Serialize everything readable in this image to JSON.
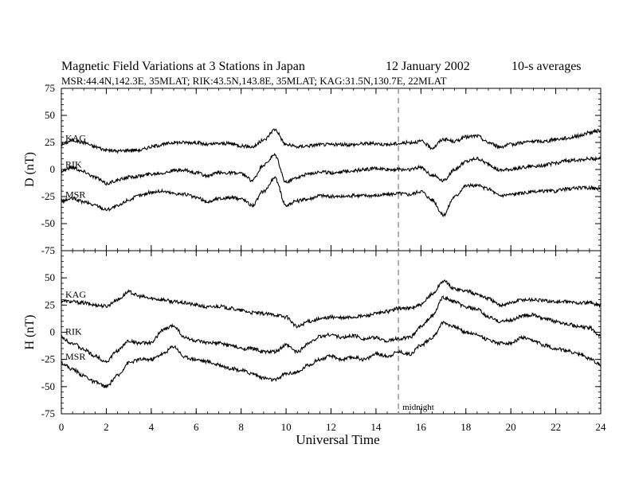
{
  "chart_data": {
    "type": "line",
    "title": {
      "left": "Magnetic Field Variations at 3 Stations in Japan",
      "date": "12 January 2002",
      "averaging": "10-s averages"
    },
    "subtitle": "MSR:44.4N,142.3E, 35MLAT;  RIK:43.5N,143.8E, 35MLAT;  KAG:31.5N,130.7E, 22MLAT",
    "xlabel": "Universal Time",
    "xlim": [
      0,
      24
    ],
    "xticks": [
      0,
      2,
      4,
      6,
      8,
      10,
      12,
      14,
      16,
      18,
      20,
      22,
      24
    ],
    "annotation": {
      "text": "midnight",
      "x": 15
    },
    "panels": [
      {
        "ylabel": "D (nT)",
        "ylim": [
          -75,
          75
        ],
        "yticks": [
          75,
          50,
          25,
          0,
          -25,
          -50,
          -75
        ],
        "x": [
          0,
          0.5,
          1,
          1.5,
          2,
          2.5,
          3,
          3.5,
          4,
          4.5,
          5,
          5.5,
          6,
          6.5,
          7,
          7.5,
          8,
          8.5,
          9,
          9.5,
          10,
          10.5,
          11,
          11.5,
          12,
          12.5,
          13,
          13.5,
          14,
          14.5,
          15,
          15.5,
          16,
          16.5,
          17,
          17.5,
          18,
          18.5,
          19,
          19.5,
          20,
          20.5,
          21,
          21.5,
          22,
          22.5,
          23,
          23.5,
          24
        ],
        "series": [
          {
            "name": "KAG",
            "values": [
              23,
              27,
              25,
              21,
              18,
              17,
              18,
              18,
              21,
              23,
              25,
              25,
              25,
              23,
              24,
              24,
              22,
              21,
              27,
              37,
              23,
              21,
              22,
              23,
              23,
              23,
              23,
              24,
              24,
              23,
              24,
              25,
              26,
              20,
              28,
              26,
              30,
              31,
              25,
              21,
              23,
              25,
              26,
              26,
              28,
              29,
              31,
              34,
              36
            ]
          },
          {
            "name": "RIK",
            "values": [
              -1,
              2,
              -2,
              -7,
              -13,
              -10,
              -7,
              -6,
              -4,
              -3,
              -1,
              -1,
              -3,
              -6,
              -3,
              -3,
              -4,
              -10,
              4,
              13,
              -12,
              -7,
              -4,
              -2,
              -3,
              -2,
              -1,
              0,
              1,
              0,
              0,
              0,
              2,
              -5,
              -10,
              0,
              7,
              10,
              5,
              -1,
              0,
              2,
              3,
              4,
              6,
              8,
              9,
              10,
              10
            ]
          },
          {
            "name": "MSR",
            "values": [
              -29,
              -27,
              -30,
              -33,
              -37,
              -34,
              -28,
              -24,
              -21,
              -20,
              -22,
              -23,
              -26,
              -30,
              -27,
              -26,
              -27,
              -33,
              -20,
              -8,
              -33,
              -29,
              -27,
              -24,
              -25,
              -25,
              -24,
              -24,
              -24,
              -23,
              -22,
              -23,
              -20,
              -28,
              -42,
              -25,
              -15,
              -15,
              -18,
              -24,
              -23,
              -22,
              -21,
              -20,
              -20,
              -18,
              -17,
              -17,
              -18
            ]
          }
        ]
      },
      {
        "ylabel": "H (nT)",
        "ylim": [
          -75,
          75
        ],
        "yticks": [
          50,
          25,
          0,
          -25,
          -50,
          -75
        ],
        "x": [
          0,
          0.5,
          1,
          1.5,
          2,
          2.5,
          3,
          3.5,
          4,
          4.5,
          5,
          5.5,
          6,
          6.5,
          7,
          7.5,
          8,
          8.5,
          9,
          9.5,
          10,
          10.5,
          11,
          11.5,
          12,
          12.5,
          13,
          13.5,
          14,
          14.5,
          15,
          15.5,
          16,
          16.5,
          17,
          17.5,
          18,
          18.5,
          19,
          19.5,
          20,
          20.5,
          21,
          21.5,
          22,
          22.5,
          23,
          23.5,
          24
        ],
        "series": [
          {
            "name": "KAG",
            "values": [
              29,
              28,
              27,
              25,
              24,
              30,
              37,
              33,
              31,
              30,
              28,
              27,
              25,
              23,
              24,
              22,
              20,
              18,
              17,
              16,
              14,
              5,
              10,
              12,
              14,
              13,
              14,
              15,
              17,
              19,
              22,
              22,
              25,
              35,
              47,
              40,
              38,
              35,
              31,
              25,
              27,
              30,
              30,
              29,
              28,
              28,
              27,
              27,
              25
            ]
          },
          {
            "name": "RIK",
            "values": [
              -5,
              -10,
              -16,
              -22,
              -27,
              -17,
              -8,
              -10,
              -10,
              2,
              6,
              -5,
              -8,
              -10,
              -10,
              -12,
              -15,
              -15,
              -18,
              -18,
              -12,
              -18,
              -10,
              -4,
              -2,
              -5,
              -3,
              -6,
              -5,
              -8,
              -6,
              -5,
              5,
              15,
              32,
              28,
              23,
              21,
              14,
              10,
              11,
              15,
              16,
              12,
              10,
              8,
              5,
              4,
              -3
            ]
          },
          {
            "name": "MSR",
            "values": [
              -28,
              -34,
              -40,
              -46,
              -50,
              -40,
              -28,
              -25,
              -25,
              -20,
              -13,
              -23,
              -25,
              -27,
              -30,
              -33,
              -35,
              -38,
              -42,
              -44,
              -38,
              -37,
              -30,
              -25,
              -22,
              -25,
              -23,
              -25,
              -20,
              -22,
              -18,
              -20,
              -12,
              -5,
              9,
              5,
              0,
              -2,
              -7,
              -10,
              -10,
              -5,
              -8,
              -12,
              -15,
              -17,
              -20,
              -24,
              -30
            ]
          }
        ]
      }
    ]
  }
}
